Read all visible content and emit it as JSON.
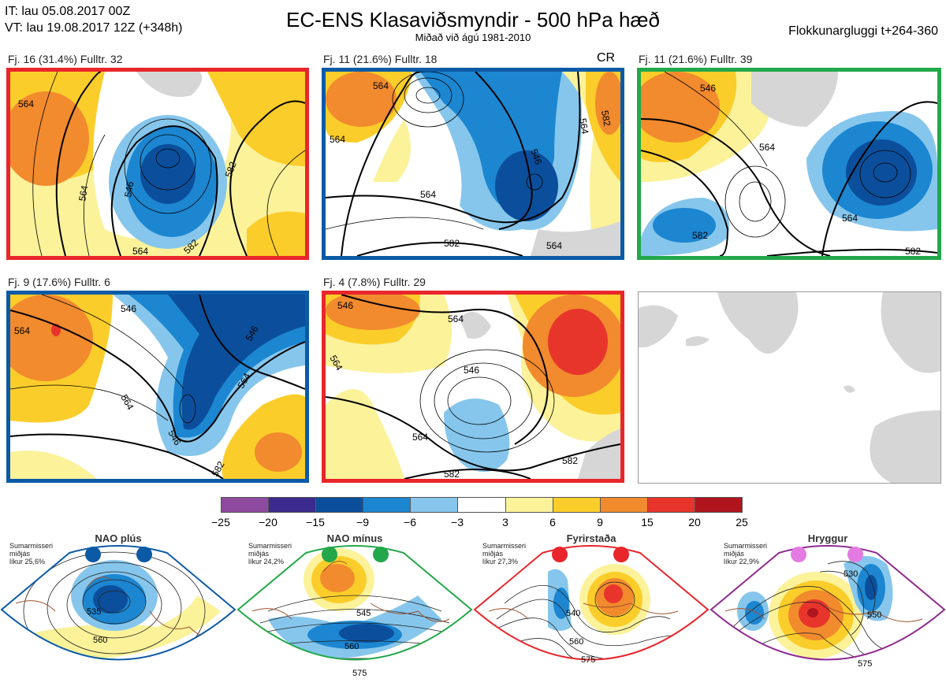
{
  "header": {
    "it": "IT: lau 05.08.2017 00Z",
    "vt": "VT: lau 19.08.2017 12Z  (+348h)",
    "title": "EC-ENS Klasaviðsmyndir - 500 hPa hæð",
    "subtitle": "Miðað við ágú 1981-2010",
    "window": "Flokkunargluggi t+264-360"
  },
  "colors": {
    "frame_red": "#e8262b",
    "frame_blue": "#0b5aa6",
    "frame_green": "#22a84a",
    "frame_purple": "#8e2a8f"
  },
  "panels": [
    {
      "label": "Fj. 16 (31.4%)   Fulltr. 32",
      "frame": "red",
      "contours": [
        "564",
        "546",
        "564",
        "582",
        "564",
        "582"
      ]
    },
    {
      "label": "Fj. 11 (21.6%)   Fulltr. 18",
      "frame": "blue",
      "badge": "CR",
      "contours": [
        "564",
        "564",
        "546",
        "564",
        "582",
        "564",
        "564",
        "582"
      ]
    },
    {
      "label": "Fj. 11 (21.6%)   Fulltr. 39",
      "frame": "green",
      "contours": [
        "546",
        "564",
        "564",
        "582",
        "582"
      ]
    },
    {
      "label": "Fj. 9 (17.6%)   Fulltr. 6",
      "frame": "blue",
      "contours": [
        "546",
        "564",
        "546",
        "564",
        "564",
        "546",
        "582"
      ]
    },
    {
      "label": "Fj. 4 (7.8%)   Fulltr. 29",
      "frame": "red",
      "contours": [
        "546",
        "564",
        "564",
        "546",
        "564",
        "582",
        "582"
      ]
    }
  ],
  "colorbar": {
    "ticks": [
      "−25",
      "−20",
      "−15",
      "−9",
      "−6",
      "−3",
      "3",
      "6",
      "9",
      "15",
      "20",
      "25"
    ],
    "colors": [
      "#8e4a9e",
      "#3d2a8e",
      "#0b4f9c",
      "#1c86d1",
      "#86c6ec",
      "#ffffff",
      "#fbf29a",
      "#fbcd2a",
      "#f28a2e",
      "#e8352b",
      "#b0151e"
    ]
  },
  "regimes": [
    {
      "title": "NAO plús",
      "season": "Sumarmisseri",
      "mean": "miðjás",
      "prob": "líkur 25,6%",
      "frame": "blue",
      "dot": "#0b5aa6",
      "contours": [
        "535",
        "560"
      ]
    },
    {
      "title": "NAO mínus",
      "season": "Sumarmisseri",
      "mean": "miðjás",
      "prob": "líkur 24,2%",
      "frame": "green",
      "dot": "#22a84a",
      "contours": [
        "545",
        "560",
        "575"
      ]
    },
    {
      "title": "Fyrirstaða",
      "season": "Sumarmisseri",
      "mean": "miðjás",
      "prob": "líkur 27,3%",
      "frame": "red",
      "dot": "#e8262b",
      "contours": [
        "540",
        "560",
        "575"
      ]
    },
    {
      "title": "Hryggur",
      "season": "Sumarmisseri",
      "mean": "miðjás",
      "prob": "líkur 22,9%",
      "frame": "purple",
      "dot": "#e37be3",
      "contours": [
        "530",
        "550",
        "575"
      ]
    }
  ]
}
